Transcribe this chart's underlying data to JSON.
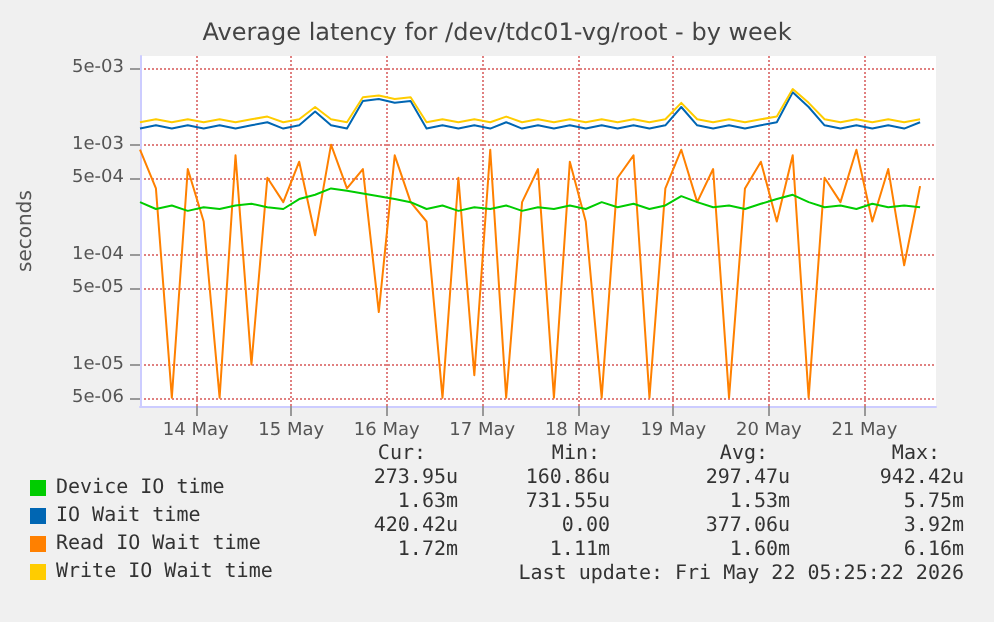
{
  "chart_data": {
    "type": "line",
    "title": "Average latency for /dev/tdc01-vg/root - by week",
    "ylabel": "seconds",
    "x": [
      "2026-05-13T22:00",
      "2026-05-14T02:00",
      "2026-05-14T06:00",
      "2026-05-14T10:00",
      "2026-05-14T14:00",
      "2026-05-14T18:00",
      "2026-05-14T22:00",
      "2026-05-15T02:00",
      "2026-05-15T06:00",
      "2026-05-15T10:00",
      "2026-05-15T14:00",
      "2026-05-15T18:00",
      "2026-05-15T22:00",
      "2026-05-16T02:00",
      "2026-05-16T06:00",
      "2026-05-16T10:00",
      "2026-05-16T14:00",
      "2026-05-16T18:00",
      "2026-05-16T22:00",
      "2026-05-17T02:00",
      "2026-05-17T06:00",
      "2026-05-17T10:00",
      "2026-05-17T14:00",
      "2026-05-17T18:00",
      "2026-05-17T22:00",
      "2026-05-18T02:00",
      "2026-05-18T06:00",
      "2026-05-18T10:00",
      "2026-05-18T14:00",
      "2026-05-18T18:00",
      "2026-05-18T22:00",
      "2026-05-19T02:00",
      "2026-05-19T06:00",
      "2026-05-19T10:00",
      "2026-05-19T14:00",
      "2026-05-19T18:00",
      "2026-05-19T22:00",
      "2026-05-20T02:00",
      "2026-05-20T06:00",
      "2026-05-20T10:00",
      "2026-05-20T14:00",
      "2026-05-20T18:00",
      "2026-05-20T22:00",
      "2026-05-21T02:00",
      "2026-05-21T06:00",
      "2026-05-21T10:00",
      "2026-05-21T14:00",
      "2026-05-21T18:00",
      "2026-05-21T22:00",
      "2026-05-22T02:00"
    ],
    "series": [
      {
        "name": "Device IO time",
        "color": "#00cc00",
        "values": [
          0.0003,
          0.00026,
          0.00028,
          0.00025,
          0.00027,
          0.00026,
          0.00028,
          0.00029,
          0.00027,
          0.00026,
          0.00032,
          0.00035,
          0.0004,
          0.00038,
          0.00036,
          0.00034,
          0.00032,
          0.0003,
          0.00026,
          0.00028,
          0.00025,
          0.00027,
          0.00026,
          0.00028,
          0.00025,
          0.00027,
          0.00026,
          0.00028,
          0.00026,
          0.0003,
          0.00027,
          0.00029,
          0.00026,
          0.00028,
          0.00034,
          0.0003,
          0.00027,
          0.00028,
          0.00026,
          0.00029,
          0.00032,
          0.00035,
          0.0003,
          0.00027,
          0.00028,
          0.00026,
          0.00029,
          0.00027,
          0.00028,
          0.00027
        ]
      },
      {
        "name": "IO Wait time",
        "color": "#0066b3",
        "values": [
          0.0014,
          0.0015,
          0.0014,
          0.0015,
          0.0014,
          0.0015,
          0.0014,
          0.0015,
          0.0016,
          0.0014,
          0.0015,
          0.002,
          0.0015,
          0.0014,
          0.0025,
          0.0026,
          0.0024,
          0.0025,
          0.0014,
          0.0015,
          0.0014,
          0.0015,
          0.0014,
          0.0016,
          0.0014,
          0.0015,
          0.0014,
          0.0015,
          0.0014,
          0.0015,
          0.0014,
          0.0015,
          0.0014,
          0.0015,
          0.0022,
          0.0015,
          0.0014,
          0.0015,
          0.0014,
          0.0015,
          0.0016,
          0.003,
          0.0022,
          0.0015,
          0.0014,
          0.0015,
          0.0014,
          0.0015,
          0.0014,
          0.0016
        ]
      },
      {
        "name": "Read IO Wait time",
        "color": "#ff8000",
        "values": [
          0.0009,
          0.0004,
          5e-06,
          0.0006,
          0.0002,
          5e-06,
          0.0008,
          1e-05,
          0.0005,
          0.0003,
          0.0007,
          0.00015,
          0.001,
          0.0004,
          0.0006,
          3e-05,
          0.0008,
          0.0003,
          0.0002,
          5e-06,
          0.0005,
          8e-06,
          0.0009,
          5e-06,
          0.0003,
          0.0006,
          5e-06,
          0.0007,
          0.0002,
          5e-06,
          0.0005,
          0.0008,
          5e-06,
          0.0004,
          0.0009,
          0.0003,
          0.0006,
          5e-06,
          0.0004,
          0.0007,
          0.0002,
          0.0008,
          5e-06,
          0.0005,
          0.0003,
          0.0009,
          0.0002,
          0.0006,
          8e-05,
          0.00042
        ]
      },
      {
        "name": "Write IO Wait time",
        "color": "#ffcc00",
        "values": [
          0.0016,
          0.0017,
          0.0016,
          0.0017,
          0.0016,
          0.0017,
          0.0016,
          0.0017,
          0.0018,
          0.0016,
          0.0017,
          0.0022,
          0.0017,
          0.0016,
          0.0027,
          0.0028,
          0.0026,
          0.0027,
          0.0016,
          0.0017,
          0.0016,
          0.0017,
          0.0016,
          0.0018,
          0.0016,
          0.0017,
          0.0016,
          0.0017,
          0.0016,
          0.0017,
          0.0016,
          0.0017,
          0.0016,
          0.0017,
          0.0024,
          0.0017,
          0.0016,
          0.0017,
          0.0016,
          0.0017,
          0.0018,
          0.0032,
          0.0024,
          0.0017,
          0.0016,
          0.0017,
          0.0016,
          0.0017,
          0.0016,
          0.0017
        ]
      }
    ],
    "xlim": [
      "2026-05-13T22:00",
      "2026-05-22T06:00"
    ],
    "xticks": [
      {
        "value": "2026-05-14T12:00",
        "label": "14 May"
      },
      {
        "value": "2026-05-15T12:00",
        "label": "15 May"
      },
      {
        "value": "2026-05-16T12:00",
        "label": "16 May"
      },
      {
        "value": "2026-05-17T12:00",
        "label": "17 May"
      },
      {
        "value": "2026-05-18T12:00",
        "label": "18 May"
      },
      {
        "value": "2026-05-19T12:00",
        "label": "19 May"
      },
      {
        "value": "2026-05-20T12:00",
        "label": "20 May"
      },
      {
        "value": "2026-05-21T12:00",
        "label": "21 May"
      }
    ],
    "ylim": [
      4.2e-06,
      0.0064
    ],
    "yticks": [
      {
        "value": 5e-06,
        "label": "5e-06"
      },
      {
        "value": 1e-05,
        "label": "1e-05"
      },
      {
        "value": 5e-05,
        "label": "5e-05"
      },
      {
        "value": 0.0001,
        "label": "1e-04"
      },
      {
        "value": 0.0005,
        "label": "5e-04"
      },
      {
        "value": 0.001,
        "label": "1e-03"
      },
      {
        "value": 0.005,
        "label": "5e-03"
      }
    ],
    "log": "y",
    "grid": true,
    "legend": "bottom left",
    "marker": "none",
    "line_style": "solid",
    "annotations": [
      "Cur:",
      "Min:",
      "Avg:",
      "Max:",
      "273.95u",
      "160.86u",
      "297.47u",
      "942.42u",
      "1.63m",
      "731.55u",
      "1.53m",
      "5.75m",
      "420.42u",
      "0.00",
      "377.06u",
      "3.92m",
      "1.72m",
      "1.11m",
      "1.60m",
      "6.16m",
      "Last update: Fri May 22 05:25:22 2026"
    ]
  }
}
